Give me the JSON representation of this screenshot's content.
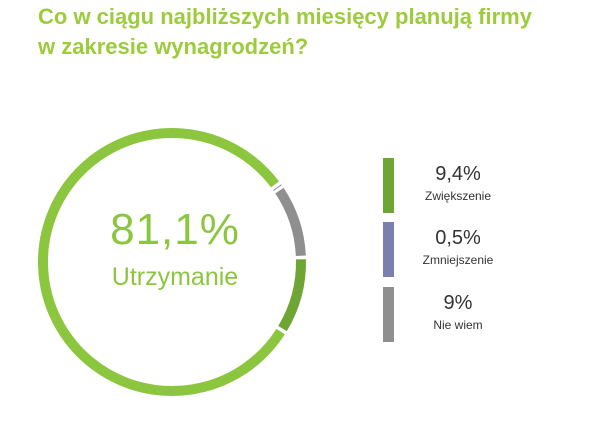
{
  "title": {
    "line1": "Co w ciągu najbliższych miesięcy planują firmy",
    "line2": "w zakresie wynagrodzeń?"
  },
  "center": {
    "value": "81,1%",
    "label": "Utrzymanie"
  },
  "legend": [
    {
      "value": "9,4%",
      "label": "Zwiększenie",
      "color": "#6ea535"
    },
    {
      "value": "0,5%",
      "label": "Zmniejszenie",
      "color": "#7a7fb0"
    },
    {
      "value": "9%",
      "label": "Nie wiem",
      "color": "#8f8f8f"
    }
  ],
  "chart_data": {
    "type": "pie",
    "categories": [
      "Utrzymanie",
      "Zwiększenie",
      "Zmniejszenie",
      "Nie wiem"
    ],
    "values": [
      81.1,
      9.4,
      0.5,
      9.0
    ],
    "colors": [
      "#8cc63f",
      "#6ea535",
      "#7a7fb0",
      "#8f8f8f"
    ],
    "title": "Co w ciągu najbliższych miesięcy planują firmy w zakresie wynagrodzeń?"
  }
}
